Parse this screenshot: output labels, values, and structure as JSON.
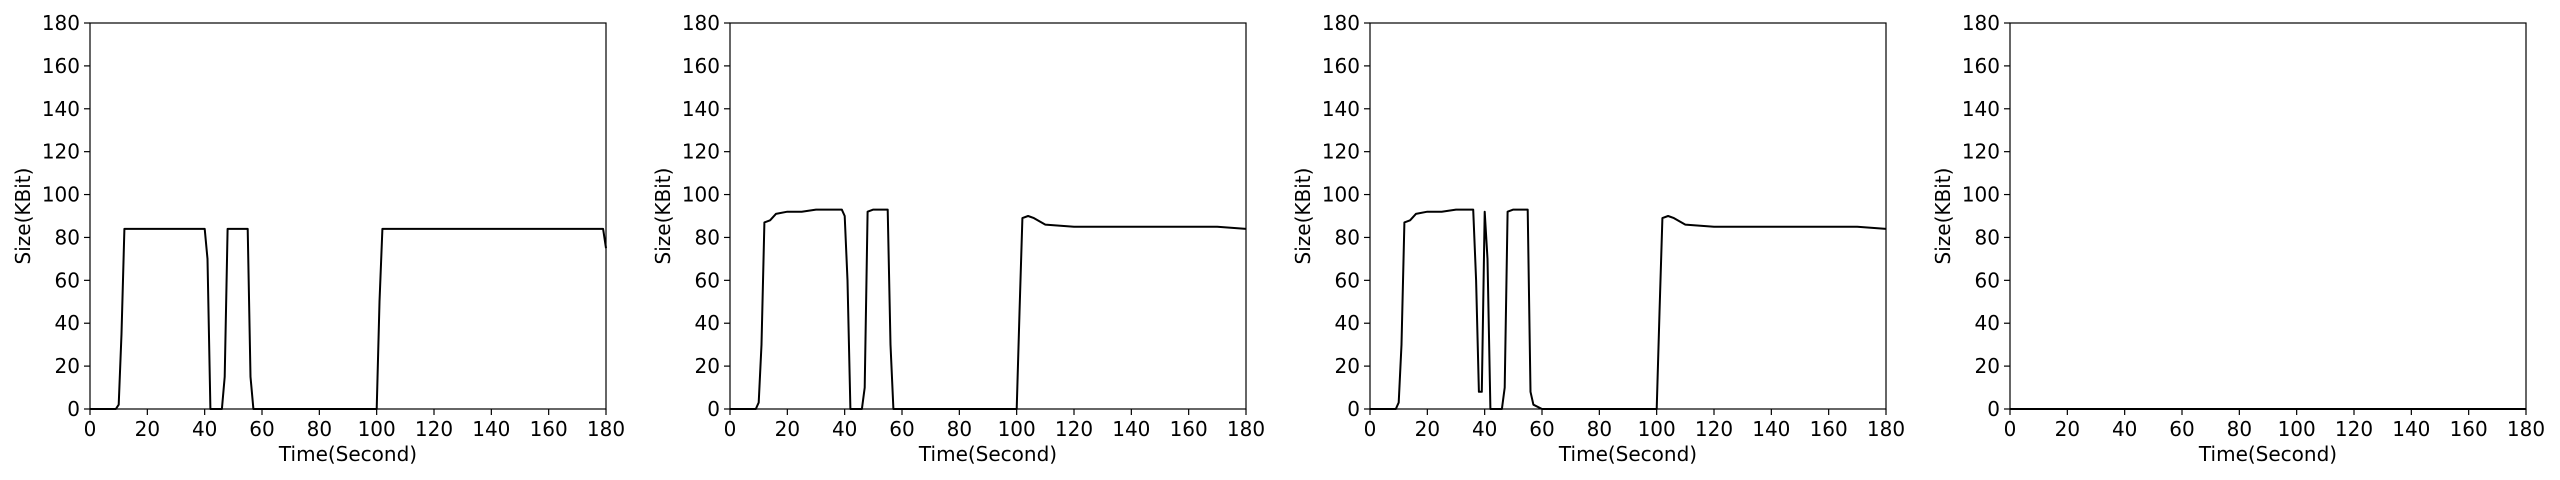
{
  "chart_data": [
    {
      "type": "line",
      "xlabel": "Time(Second)",
      "ylabel": "Size(KBit)",
      "xlim": [
        0,
        180
      ],
      "ylim": [
        0,
        180
      ],
      "xticks": [
        0,
        20,
        40,
        60,
        80,
        100,
        120,
        140,
        160,
        180
      ],
      "yticks": [
        0,
        20,
        40,
        60,
        80,
        100,
        120,
        140,
        160,
        180
      ],
      "grid": false,
      "line_color": "#000000",
      "series": [
        {
          "x": [
            0,
            5,
            9,
            10,
            11,
            12,
            20,
            30,
            38,
            40,
            41,
            42,
            44,
            46,
            47,
            48,
            50,
            54,
            55,
            56,
            57,
            60,
            70,
            80,
            90,
            99,
            100,
            101,
            102,
            110,
            120,
            130,
            140,
            150,
            160,
            170,
            178,
            179,
            180
          ],
          "y": [
            0,
            0,
            0,
            2,
            35,
            84,
            84,
            84,
            84,
            84,
            70,
            0,
            0,
            0,
            15,
            84,
            84,
            84,
            84,
            15,
            0,
            0,
            0,
            0,
            0,
            0,
            0,
            50,
            84,
            84,
            84,
            84,
            84,
            84,
            84,
            84,
            84,
            84,
            75
          ]
        }
      ]
    },
    {
      "type": "line",
      "xlabel": "Time(Second)",
      "ylabel": "Size(KBit)",
      "xlim": [
        0,
        180
      ],
      "ylim": [
        0,
        180
      ],
      "xticks": [
        0,
        20,
        40,
        60,
        80,
        100,
        120,
        140,
        160,
        180
      ],
      "yticks": [
        0,
        20,
        40,
        60,
        80,
        100,
        120,
        140,
        160,
        180
      ],
      "grid": false,
      "line_color": "#000000",
      "series": [
        {
          "x": [
            0,
            5,
            9,
            10,
            11,
            12,
            14,
            16,
            20,
            25,
            30,
            35,
            39,
            40,
            41,
            42,
            44,
            46,
            47,
            48,
            50,
            54,
            55,
            56,
            57,
            60,
            70,
            80,
            90,
            99,
            100,
            101,
            102,
            104,
            106,
            110,
            120,
            130,
            140,
            150,
            160,
            170,
            180
          ],
          "y": [
            0,
            0,
            0,
            3,
            30,
            87,
            88,
            91,
            92,
            92,
            93,
            93,
            93,
            90,
            60,
            0,
            0,
            0,
            10,
            92,
            93,
            93,
            93,
            30,
            0,
            0,
            0,
            0,
            0,
            0,
            0,
            45,
            89,
            90,
            89,
            86,
            85,
            85,
            85,
            85,
            85,
            85,
            84
          ]
        }
      ]
    },
    {
      "type": "line",
      "xlabel": "Time(Second)",
      "ylabel": "Size(KBit)",
      "xlim": [
        0,
        180
      ],
      "ylim": [
        0,
        180
      ],
      "xticks": [
        0,
        20,
        40,
        60,
        80,
        100,
        120,
        140,
        160,
        180
      ],
      "yticks": [
        0,
        20,
        40,
        60,
        80,
        100,
        120,
        140,
        160,
        180
      ],
      "grid": false,
      "line_color": "#000000",
      "series": [
        {
          "x": [
            0,
            5,
            9,
            10,
            11,
            12,
            14,
            16,
            20,
            25,
            30,
            35,
            36,
            37,
            38,
            39,
            40,
            41,
            42,
            44,
            46,
            47,
            48,
            50,
            54,
            55,
            56,
            57,
            60,
            70,
            80,
            90,
            99,
            100,
            101,
            102,
            104,
            106,
            110,
            120,
            130,
            140,
            150,
            160,
            170,
            180
          ],
          "y": [
            0,
            0,
            0,
            3,
            30,
            87,
            88,
            91,
            92,
            92,
            93,
            93,
            93,
            60,
            8,
            8,
            92,
            70,
            0,
            0,
            0,
            10,
            92,
            93,
            93,
            93,
            8,
            2,
            0,
            0,
            0,
            0,
            0,
            0,
            45,
            89,
            90,
            89,
            86,
            85,
            85,
            85,
            85,
            85,
            85,
            84
          ]
        }
      ]
    },
    {
      "type": "line",
      "xlabel": "Time(Second)",
      "ylabel": "Size(KBit)",
      "xlim": [
        0,
        180
      ],
      "ylim": [
        0,
        180
      ],
      "xticks": [
        0,
        20,
        40,
        60,
        80,
        100,
        120,
        140,
        160,
        180
      ],
      "yticks": [
        0,
        20,
        40,
        60,
        80,
        100,
        120,
        140,
        160,
        180
      ],
      "grid": false,
      "line_color": "#000000",
      "series": [
        {
          "x": [
            0,
            20,
            40,
            60,
            80,
            100,
            120,
            140,
            160,
            180
          ],
          "y": [
            0,
            0,
            0,
            0,
            0,
            0,
            0,
            0,
            0,
            0
          ]
        }
      ]
    }
  ]
}
